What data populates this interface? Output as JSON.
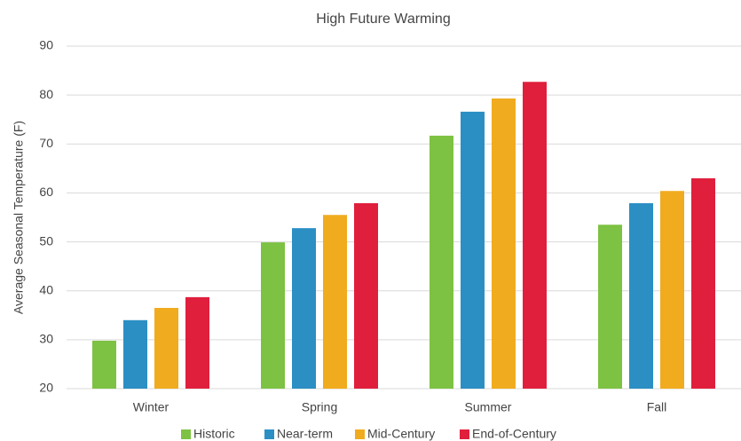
{
  "chart_data": {
    "type": "bar",
    "title": "High Future Warming",
    "ylabel": "Average Seasonal Temperature (F)",
    "categories": [
      "Winter",
      "Spring",
      "Summer",
      "Fall"
    ],
    "series": [
      {
        "name": "Historic",
        "color": "#7dc242",
        "values": [
          29.8,
          49.9,
          71.7,
          53.5
        ]
      },
      {
        "name": "Near-term",
        "color": "#2b8fc4",
        "values": [
          34,
          52.8,
          76.6,
          57.9
        ]
      },
      {
        "name": "Mid-Century",
        "color": "#f0ab1e",
        "values": [
          36.5,
          55.5,
          79.3,
          60.4
        ]
      },
      {
        "name": "End-of-Century",
        "color": "#e01f3d",
        "values": [
          38.7,
          57.9,
          82.7,
          63
        ]
      }
    ],
    "ylim": [
      20,
      90
    ],
    "yticks": [
      20,
      30,
      40,
      50,
      60,
      70,
      80,
      90
    ],
    "grid": true,
    "legend": "bottom"
  }
}
